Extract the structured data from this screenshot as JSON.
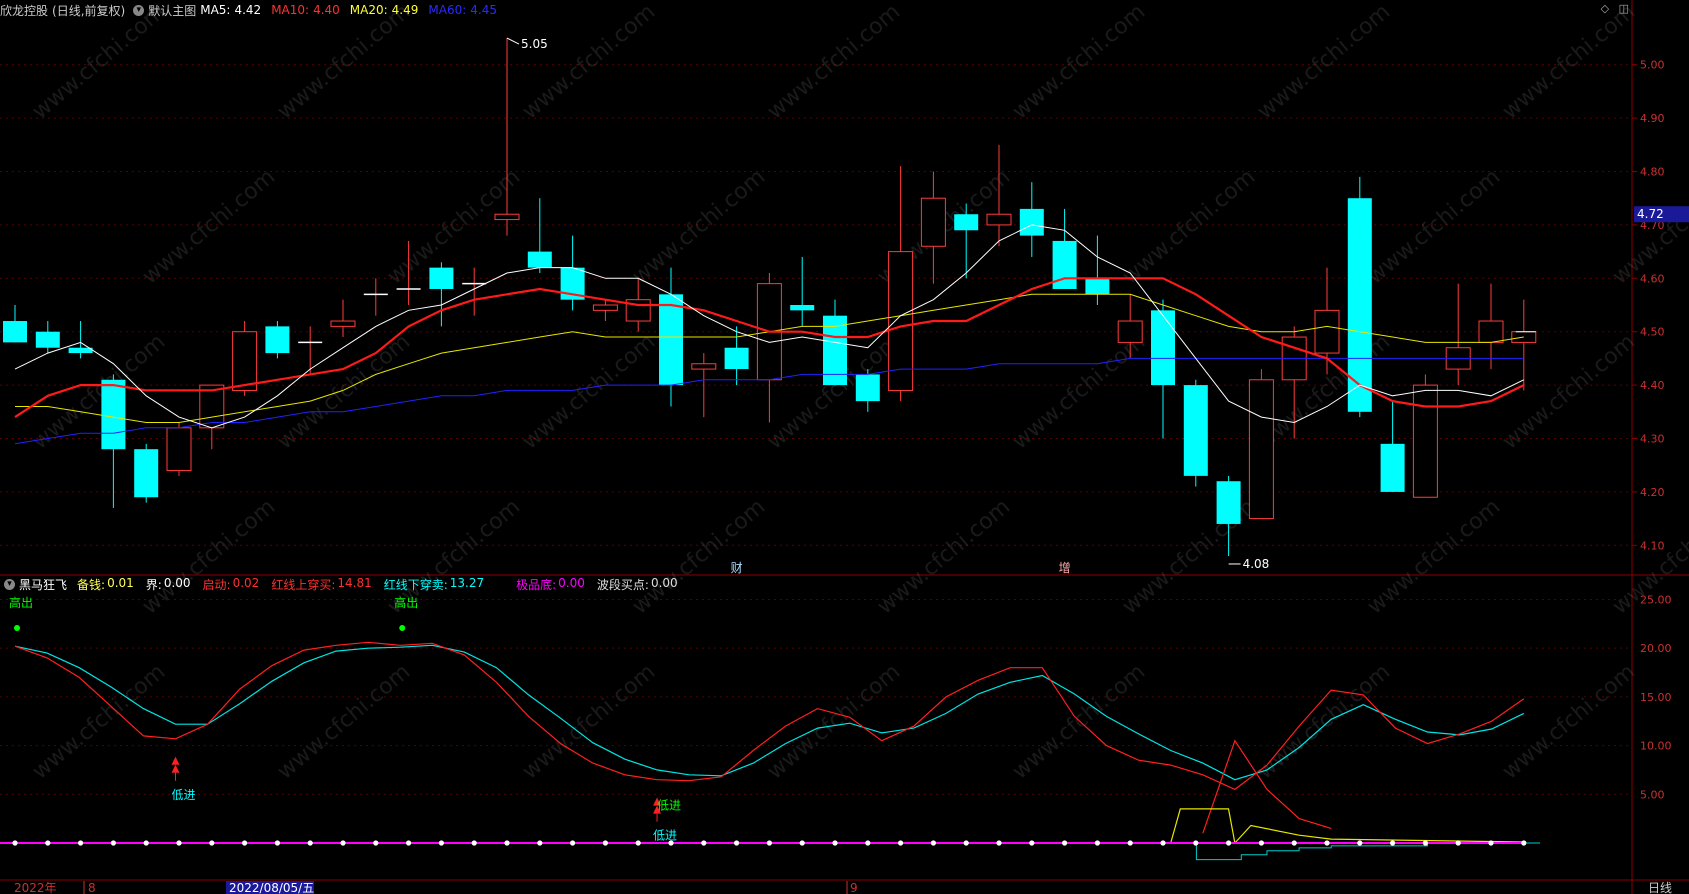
{
  "header": {
    "stock": "欣龙控股",
    "mode": "(日线,前复权)",
    "template": "默认主图",
    "ma5_label": "MA5:",
    "ma5_value": "4.42",
    "ma10_label": "MA10:",
    "ma10_value": "4.40",
    "ma20_label": "MA20:",
    "ma20_value": "4.49",
    "ma60_label": "MA60:",
    "ma60_value": "4.45"
  },
  "indicator": {
    "name": "黑马狂飞",
    "items": [
      {
        "label": "备钱:",
        "value": "0.01",
        "color": "#ffff55"
      },
      {
        "label": "界:",
        "value": "0.00",
        "color": "#ffffff"
      },
      {
        "label": "启动:",
        "value": "0.02",
        "color": "#ff3030"
      },
      {
        "label": "红线上穿买:",
        "value": "14.81",
        "color": "#ff3030"
      },
      {
        "label": "红线下穿卖:",
        "value": "13.27",
        "color": "#00ffff"
      },
      {
        "label": "极品底:",
        "value": "0.00",
        "color": "#ff00ff"
      },
      {
        "label": "波段买点:",
        "value": "0.00",
        "color": "#dddddd"
      }
    ],
    "signal_low": "低进",
    "signal_high": "高出"
  },
  "price_axis": {
    "ticks": [
      "5.00",
      "4.90",
      "4.80",
      "4.70",
      "4.60",
      "4.50",
      "4.40",
      "4.30",
      "4.20",
      "4.10"
    ],
    "current": "4.72"
  },
  "sub_axis": {
    "ticks": [
      "25.00",
      "20.00",
      "15.00",
      "10.00",
      "5.00"
    ]
  },
  "date_axis": {
    "labels": [
      "2022年",
      "8",
      "2022/08/05/五",
      "9"
    ],
    "period": "日线"
  },
  "markers": {
    "cai": "财",
    "zeng": "增",
    "high_label": "5.05",
    "low_label": "4.08"
  },
  "watermark": "www.cfchi.com",
  "colors": {
    "up": "#ff3b3b",
    "down": "#00ffff",
    "ma5": "#ffffff",
    "ma10": "#ff1a1a",
    "ma20": "#e6e600",
    "ma60": "#2222ff"
  },
  "chart_data": {
    "type": "candlestick",
    "ylim": [
      4.05,
      5.08
    ],
    "candles": [
      {
        "o": 4.52,
        "h": 4.55,
        "l": 4.48,
        "c": 4.48
      },
      {
        "o": 4.5,
        "h": 4.52,
        "l": 4.46,
        "c": 4.47
      },
      {
        "o": 4.47,
        "h": 4.52,
        "l": 4.45,
        "c": 4.46
      },
      {
        "o": 4.41,
        "h": 4.42,
        "l": 4.17,
        "c": 4.28
      },
      {
        "o": 4.28,
        "h": 4.29,
        "l": 4.18,
        "c": 4.19
      },
      {
        "o": 4.24,
        "h": 4.33,
        "l": 4.23,
        "c": 4.32
      },
      {
        "o": 4.32,
        "h": 4.4,
        "l": 4.28,
        "c": 4.4
      },
      {
        "o": 4.39,
        "h": 4.52,
        "l": 4.38,
        "c": 4.5
      },
      {
        "o": 4.51,
        "h": 4.52,
        "l": 4.45,
        "c": 4.46
      },
      {
        "o": 4.48,
        "h": 4.51,
        "l": 4.42,
        "c": 4.48
      },
      {
        "o": 4.51,
        "h": 4.56,
        "l": 4.49,
        "c": 4.52
      },
      {
        "o": 4.57,
        "h": 4.6,
        "l": 4.53,
        "c": 4.57
      },
      {
        "o": 4.58,
        "h": 4.67,
        "l": 4.55,
        "c": 4.58
      },
      {
        "o": 4.62,
        "h": 4.63,
        "l": 4.51,
        "c": 4.58
      },
      {
        "o": 4.59,
        "h": 4.62,
        "l": 4.53,
        "c": 4.59
      },
      {
        "o": 4.71,
        "h": 5.05,
        "l": 4.68,
        "c": 4.72
      },
      {
        "o": 4.65,
        "h": 4.75,
        "l": 4.61,
        "c": 4.62
      },
      {
        "o": 4.62,
        "h": 4.68,
        "l": 4.54,
        "c": 4.56
      },
      {
        "o": 4.54,
        "h": 4.56,
        "l": 4.52,
        "c": 4.55
      },
      {
        "o": 4.52,
        "h": 4.6,
        "l": 4.5,
        "c": 4.56
      },
      {
        "o": 4.57,
        "h": 4.62,
        "l": 4.36,
        "c": 4.4
      },
      {
        "o": 4.43,
        "h": 4.46,
        "l": 4.34,
        "c": 4.44
      },
      {
        "o": 4.47,
        "h": 4.51,
        "l": 4.4,
        "c": 4.43
      },
      {
        "o": 4.41,
        "h": 4.61,
        "l": 4.33,
        "c": 4.59
      },
      {
        "o": 4.55,
        "h": 4.64,
        "l": 4.51,
        "c": 4.54
      },
      {
        "o": 4.53,
        "h": 4.56,
        "l": 4.4,
        "c": 4.4
      },
      {
        "o": 4.42,
        "h": 4.43,
        "l": 4.35,
        "c": 4.37
      },
      {
        "o": 4.39,
        "h": 4.81,
        "l": 4.37,
        "c": 4.65
      },
      {
        "o": 4.66,
        "h": 4.8,
        "l": 4.59,
        "c": 4.75
      },
      {
        "o": 4.72,
        "h": 4.74,
        "l": 4.6,
        "c": 4.69
      },
      {
        "o": 4.7,
        "h": 4.85,
        "l": 4.66,
        "c": 4.72
      },
      {
        "o": 4.73,
        "h": 4.78,
        "l": 4.64,
        "c": 4.68
      },
      {
        "o": 4.67,
        "h": 4.73,
        "l": 4.58,
        "c": 4.58
      },
      {
        "o": 4.6,
        "h": 4.68,
        "l": 4.55,
        "c": 4.57
      },
      {
        "o": 4.48,
        "h": 4.57,
        "l": 4.45,
        "c": 4.52
      },
      {
        "o": 4.54,
        "h": 4.56,
        "l": 4.3,
        "c": 4.4
      },
      {
        "o": 4.4,
        "h": 4.41,
        "l": 4.21,
        "c": 4.23
      },
      {
        "o": 4.22,
        "h": 4.23,
        "l": 4.08,
        "c": 4.14
      },
      {
        "o": 4.15,
        "h": 4.43,
        "l": 4.15,
        "c": 4.41
      },
      {
        "o": 4.41,
        "h": 4.51,
        "l": 4.3,
        "c": 4.49
      },
      {
        "o": 4.46,
        "h": 4.62,
        "l": 4.42,
        "c": 4.54
      },
      {
        "o": 4.75,
        "h": 4.79,
        "l": 4.34,
        "c": 4.35
      },
      {
        "o": 4.29,
        "h": 4.37,
        "l": 4.2,
        "c": 4.2
      },
      {
        "o": 4.19,
        "h": 4.42,
        "l": 4.19,
        "c": 4.4
      },
      {
        "o": 4.43,
        "h": 4.59,
        "l": 4.4,
        "c": 4.47
      },
      {
        "o": 4.48,
        "h": 4.59,
        "l": 4.43,
        "c": 4.52
      },
      {
        "o": 4.48,
        "h": 4.56,
        "l": 4.39,
        "c": 4.5
      }
    ],
    "ma5": [
      4.43,
      4.46,
      4.48,
      4.44,
      4.38,
      4.34,
      4.32,
      4.34,
      4.38,
      4.43,
      4.47,
      4.51,
      4.54,
      4.55,
      4.58,
      4.61,
      4.62,
      4.62,
      4.6,
      4.6,
      4.57,
      4.53,
      4.5,
      4.48,
      4.49,
      4.48,
      4.47,
      4.53,
      4.56,
      4.61,
      4.67,
      4.7,
      4.69,
      4.64,
      4.61,
      4.53,
      4.45,
      4.37,
      4.34,
      4.33,
      4.36,
      4.4,
      4.38,
      4.39,
      4.39,
      4.38,
      4.41
    ],
    "ma10": [
      4.34,
      4.38,
      4.4,
      4.4,
      4.39,
      4.39,
      4.39,
      4.4,
      4.41,
      4.42,
      4.43,
      4.46,
      4.51,
      4.54,
      4.56,
      4.57,
      4.58,
      4.57,
      4.56,
      4.55,
      4.55,
      4.54,
      4.52,
      4.5,
      4.5,
      4.49,
      4.49,
      4.51,
      4.52,
      4.52,
      4.55,
      4.58,
      4.6,
      4.6,
      4.6,
      4.6,
      4.57,
      4.53,
      4.49,
      4.47,
      4.45,
      4.4,
      4.37,
      4.36,
      4.36,
      4.37,
      4.4
    ],
    "ma20": [
      4.36,
      4.36,
      4.35,
      4.34,
      4.33,
      4.33,
      4.34,
      4.35,
      4.36,
      4.37,
      4.39,
      4.42,
      4.44,
      4.46,
      4.47,
      4.48,
      4.49,
      4.5,
      4.49,
      4.49,
      4.49,
      4.49,
      4.49,
      4.5,
      4.51,
      4.51,
      4.52,
      4.53,
      4.54,
      4.55,
      4.56,
      4.57,
      4.57,
      4.57,
      4.57,
      4.55,
      4.53,
      4.51,
      4.5,
      4.5,
      4.51,
      4.5,
      4.49,
      4.48,
      4.48,
      4.48,
      4.49
    ],
    "ma60": [
      4.29,
      4.3,
      4.31,
      4.31,
      4.32,
      4.32,
      4.33,
      4.33,
      4.34,
      4.35,
      4.35,
      4.36,
      4.37,
      4.38,
      4.38,
      4.39,
      4.39,
      4.39,
      4.4,
      4.4,
      4.4,
      4.41,
      4.41,
      4.41,
      4.42,
      4.42,
      4.42,
      4.43,
      4.43,
      4.43,
      4.44,
      4.44,
      4.44,
      4.44,
      4.45,
      4.45,
      4.45,
      4.45,
      4.45,
      4.45,
      4.45,
      4.45,
      4.45,
      4.45,
      4.45,
      4.45,
      4.45
    ],
    "sub": {
      "ylim": [
        0,
        27
      ],
      "red": [
        20.2,
        19.0,
        17.0,
        14.0,
        11.0,
        10.7,
        12.2,
        15.8,
        18.2,
        19.8,
        20.3,
        20.6,
        20.3,
        20.5,
        19.3,
        16.5,
        13.0,
        10.2,
        8.2,
        7.0,
        6.5,
        6.4,
        6.8,
        9.5,
        12.0,
        13.8,
        12.9,
        10.5,
        12.0,
        15.0,
        16.7,
        18.0,
        18.0,
        13.0,
        10.0,
        8.5,
        8.0,
        7.0,
        5.5,
        8.0,
        12.0,
        15.7,
        15.2,
        11.8,
        10.2,
        11.2,
        12.5,
        14.8
      ],
      "cyan": [
        20.2,
        19.5,
        18.0,
        16.0,
        13.8,
        12.2,
        12.2,
        14.3,
        16.6,
        18.5,
        19.7,
        20.0,
        20.1,
        20.3,
        19.6,
        18.0,
        15.2,
        12.8,
        10.3,
        8.6,
        7.5,
        7.0,
        6.9,
        8.2,
        10.2,
        11.8,
        12.3,
        11.3,
        11.8,
        13.3,
        15.3,
        16.5,
        17.2,
        15.3,
        13.0,
        11.2,
        9.5,
        8.2,
        6.5,
        7.5,
        9.8,
        12.7,
        14.2,
        12.7,
        11.4,
        11.1,
        11.7,
        13.3
      ],
      "spike": [
        {
          "i": 37,
          "v": 1
        },
        {
          "i": 38,
          "v": 10.5
        },
        {
          "i": 39,
          "v": 5.5
        },
        {
          "i": 40,
          "v": 2.5
        },
        {
          "i": 41,
          "v": 1.5
        }
      ],
      "yellow": [
        {
          "i": 36,
          "v": 0
        },
        {
          "i": 36.3,
          "v": 3.5
        },
        {
          "i": 37.8,
          "v": 3.5
        },
        {
          "i": 38,
          "v": 0
        },
        {
          "i": 38.5,
          "v": 1.8
        },
        {
          "i": 40,
          "v": 0.8
        },
        {
          "i": 41,
          "v": 0.4
        },
        {
          "i": 47,
          "v": 0.1
        }
      ],
      "low_signals": [
        5,
        20
      ],
      "high_signals": [
        0,
        12
      ]
    }
  }
}
